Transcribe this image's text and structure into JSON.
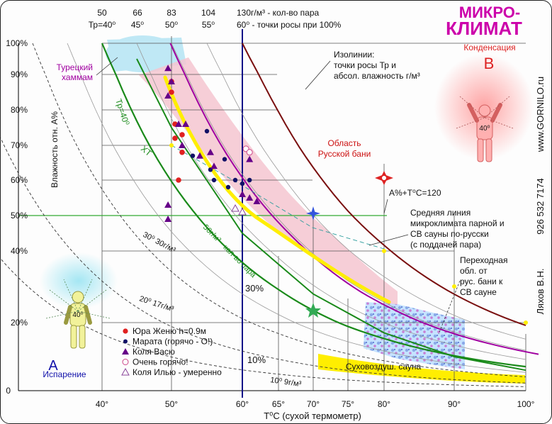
{
  "title_line1": "МИКРО-",
  "title_line2": "КЛИМАТ",
  "website": "www.GORNILO.ru",
  "phone": "926 532 7174",
  "author": "Ляхов В.Н.",
  "colors": {
    "green": "#1a8a1a",
    "purple": "#a000a0",
    "brown": "#7a1010",
    "navy": "#111188",
    "yellow": "#ffee00",
    "pink_band": "#f4c6d0",
    "hammam": "#bfe8f5",
    "accent_title": "#cc00aa",
    "condensation": "#dd2222"
  },
  "top_axis": {
    "pairs": [
      {
        "vapor": "50",
        "dew": "Тр=40⁰"
      },
      {
        "vapor": "66",
        "dew": "45⁰"
      },
      {
        "vapor": "83",
        "dew": "50⁰"
      },
      {
        "vapor": "104",
        "dew": "55⁰"
      },
      {
        "vapor": "130г/м³ - кол-во пара",
        "dew": "60⁰ - точки росы при 100%"
      }
    ]
  },
  "labels": {
    "hammam": "Турецкий\nхаммам",
    "condensation": "Конденсация",
    "condensation_letter": "B",
    "isolines": "Изолинии:\nточки росы Тр и\nабсол. влажность г/м³",
    "russian_bath": "Область\nРусской бани",
    "a_plus_t": "А%+T⁰С=120",
    "mid_line": "Средняя линия\nмикроклимата парной и\nСВ сауны по-русски\n(с поддачей пара)",
    "transition": "Переходная\nобл. от\nрус. бани к\nСВ сауне",
    "dry_sauna": "Суховоздуш. сауна",
    "evaporation": "Испарение",
    "evaporation_letter": "A",
    "tr40": "Тр=40⁰",
    "xt": "ХТ",
    "line50": "50г/м³ - кол-во пара",
    "line30": "30⁰ 30г/м³",
    "line20": "20⁰ 17г/м³",
    "line10": "10⁰ 9г/м³",
    "pct30": "30%",
    "pct10": "10%",
    "person_temp": "40⁰",
    "person_temp_b": "40⁰"
  },
  "legend": [
    {
      "text": "Юра Женю h=0.9м",
      "marker": "dot-red"
    },
    {
      "text": "Марата (горячо - О!)",
      "marker": "dot-navy"
    },
    {
      "text": "Коля Васю",
      "marker": "triangle-purple"
    },
    {
      "text": "Очень горячо!",
      "marker": "circle-open"
    },
    {
      "text": "Коля Илью - умеренно",
      "marker": "triangle-open"
    }
  ],
  "chart_data": {
    "type": "scatter",
    "xlabel": "T⁰С (сухой термометр)",
    "ylabel": "Влажность отн. А%",
    "x_ticks": [
      "40°",
      "50°",
      "60°",
      "65°",
      "70°",
      "75°",
      "80°",
      "90°",
      "100°"
    ],
    "y_ticks": [
      "100%",
      "90%",
      "80%",
      "70%",
      "60%",
      "50%",
      "40%",
      "20%",
      "0"
    ],
    "xlim": [
      35,
      100
    ],
    "ylim": [
      0,
      100
    ],
    "series": [
      {
        "name": "Юра Женю h=0.9м",
        "marker": "dot-red",
        "points": [
          [
            50,
            88
          ],
          [
            50,
            85
          ],
          [
            50.5,
            76
          ],
          [
            50.5,
            72
          ],
          [
            51.5,
            73
          ],
          [
            51.5,
            68
          ],
          [
            51,
            60
          ]
        ]
      },
      {
        "name": "Марата (горячо - О!)",
        "marker": "dot-navy",
        "points": [
          [
            55,
            74
          ],
          [
            53,
            67
          ],
          [
            55.5,
            63
          ],
          [
            57.5,
            66
          ],
          [
            56,
            60
          ],
          [
            59,
            60
          ],
          [
            60,
            59
          ],
          [
            61,
            60
          ],
          [
            58,
            58
          ]
        ]
      },
      {
        "name": "Коля Васю",
        "marker": "triangle-purple",
        "points": [
          [
            49.5,
            92
          ],
          [
            50,
            88
          ],
          [
            49.5,
            84
          ],
          [
            51,
            76
          ],
          [
            52,
            76
          ],
          [
            51.5,
            70
          ],
          [
            54,
            67
          ],
          [
            55.5,
            68
          ],
          [
            56,
            64
          ],
          [
            61,
            66
          ],
          [
            60,
            56
          ],
          [
            61,
            55
          ],
          [
            62,
            54
          ],
          [
            49.5,
            53
          ],
          [
            49.5,
            49
          ]
        ]
      },
      {
        "name": "Очень горячо!",
        "marker": "circle-open",
        "points": [
          [
            60.5,
            69
          ],
          [
            61,
            68
          ]
        ]
      },
      {
        "name": "Коля Илью - умеренно",
        "marker": "triangle-open",
        "points": [
          [
            59,
            52
          ],
          [
            60,
            51
          ]
        ]
      }
    ]
  }
}
